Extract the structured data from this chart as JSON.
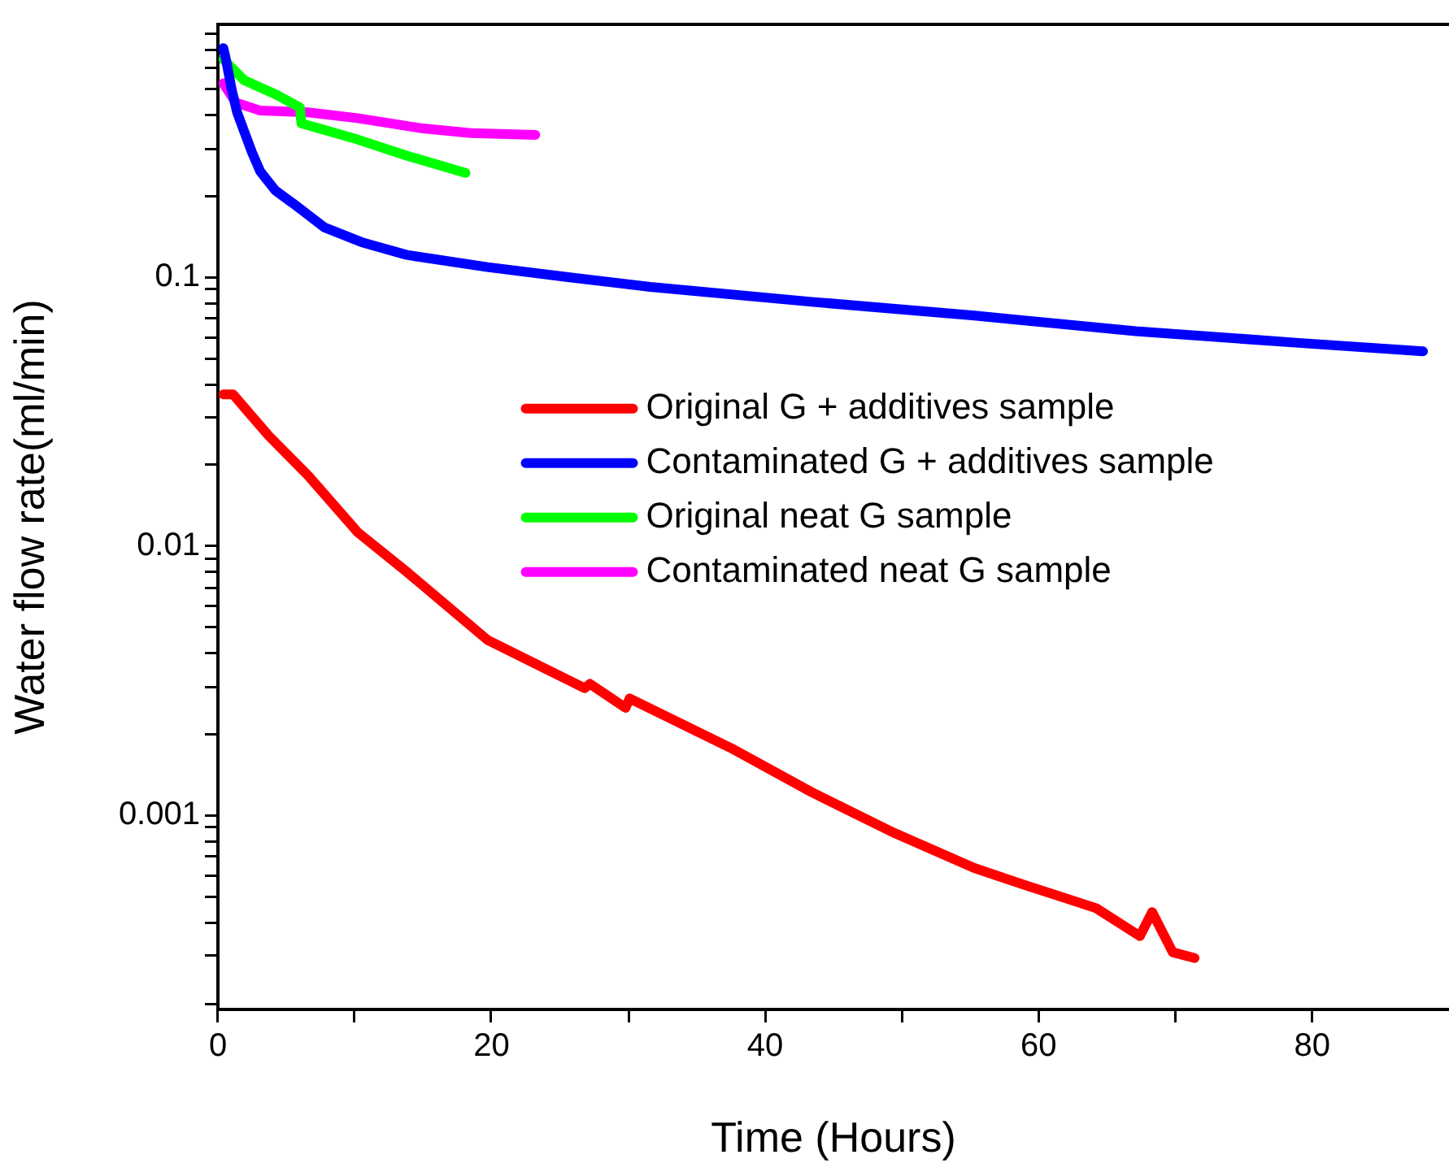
{
  "chart_data": {
    "type": "line",
    "xlabel": "Time (Hours)",
    "ylabel": "Water flow rate(ml/min)",
    "log": "y",
    "grid": false,
    "legend": "right",
    "marker": "none",
    "line_style": "solid",
    "xlim": [
      0,
      90
    ],
    "xticks": [
      0,
      {
        "value": 10,
        "label": null
      },
      20,
      {
        "value": 30,
        "label": null
      },
      40,
      {
        "value": 50,
        "label": null
      },
      60,
      {
        "value": 70,
        "label": null
      },
      80
    ],
    "ylim": [
      0.00019,
      0.87
    ],
    "yticks": [
      {
        "value": 0.0002,
        "label": null
      },
      {
        "value": 0.0003,
        "label": null
      },
      {
        "value": 0.0004,
        "label": null
      },
      {
        "value": 0.0005,
        "label": null
      },
      {
        "value": 0.0006,
        "label": null
      },
      {
        "value": 0.0007,
        "label": null
      },
      {
        "value": 0.0008,
        "label": null
      },
      {
        "value": 0.0009,
        "label": null
      },
      0.001,
      {
        "value": 0.002,
        "label": null
      },
      {
        "value": 0.003,
        "label": null
      },
      {
        "value": 0.004,
        "label": null
      },
      {
        "value": 0.005,
        "label": null
      },
      {
        "value": 0.006,
        "label": null
      },
      {
        "value": 0.007,
        "label": null
      },
      {
        "value": 0.008,
        "label": null
      },
      {
        "value": 0.009,
        "label": null
      },
      0.01,
      {
        "value": 0.02,
        "label": null
      },
      {
        "value": 0.03,
        "label": null
      },
      {
        "value": 0.04,
        "label": null
      },
      {
        "value": 0.05,
        "label": null
      },
      {
        "value": 0.06,
        "label": null
      },
      {
        "value": 0.07,
        "label": null
      },
      {
        "value": 0.08,
        "label": null
      },
      {
        "value": 0.09,
        "label": null
      },
      0.1,
      {
        "value": 0.2,
        "label": null
      },
      {
        "value": 0.3,
        "label": null
      },
      {
        "value": 0.4,
        "label": null
      },
      {
        "value": 0.5,
        "label": null
      },
      {
        "value": 0.6,
        "label": null
      },
      {
        "value": 0.7,
        "label": null
      },
      {
        "value": 0.8,
        "label": null
      }
    ],
    "series": [
      {
        "name": "Original G + additives sample",
        "color": "#ff0000",
        "x": [
          0.4,
          1.1,
          3.7,
          6.6,
          10.2,
          13.8,
          19.7,
          26.8,
          27.2,
          29.8,
          30.1,
          37.5,
          43.4,
          49.3,
          55.3,
          58.8,
          64.2,
          67.4,
          68.3,
          69.8,
          71.4
        ],
        "values": [
          0.0367,
          0.0367,
          0.0258,
          0.0183,
          0.0113,
          0.00804,
          0.00449,
          0.00297,
          0.00308,
          0.00251,
          0.00272,
          0.00178,
          0.00122,
          0.000867,
          0.000637,
          0.000555,
          0.000452,
          0.000356,
          0.000437,
          0.00031,
          0.000295
        ]
      },
      {
        "name": "Contaminated G + additives sample",
        "color": "#0000ff",
        "x": [
          0.4,
          0.6,
          1.0,
          1.4,
          1.9,
          2.5,
          3.1,
          4.2,
          5.5,
          7.8,
          10.5,
          13.8,
          19.7,
          25.6,
          31.6,
          43.4,
          55.3,
          67.1,
          79,
          88.1
        ],
        "values": [
          0.71,
          0.64,
          0.5,
          0.41,
          0.35,
          0.29,
          0.247,
          0.21,
          0.188,
          0.153,
          0.135,
          0.121,
          0.109,
          0.1,
          0.092,
          0.081,
          0.072,
          0.063,
          0.057,
          0.053
        ]
      },
      {
        "name": "Original neat G sample",
        "color": "#00ff00",
        "x": [
          0.4,
          1.9,
          4.3,
          6.0,
          6.1,
          10.2,
          13.8,
          18.1
        ],
        "values": [
          0.645,
          0.54,
          0.476,
          0.427,
          0.373,
          0.325,
          0.283,
          0.244
        ]
      },
      {
        "name": "Contaminated neat G sample",
        "color": "#ff00ff",
        "x": [
          0.4,
          1.3,
          3.1,
          6.6,
          10.2,
          15,
          18.5,
          23.2
        ],
        "values": [
          0.525,
          0.446,
          0.416,
          0.41,
          0.39,
          0.357,
          0.343,
          0.338
        ]
      }
    ]
  }
}
